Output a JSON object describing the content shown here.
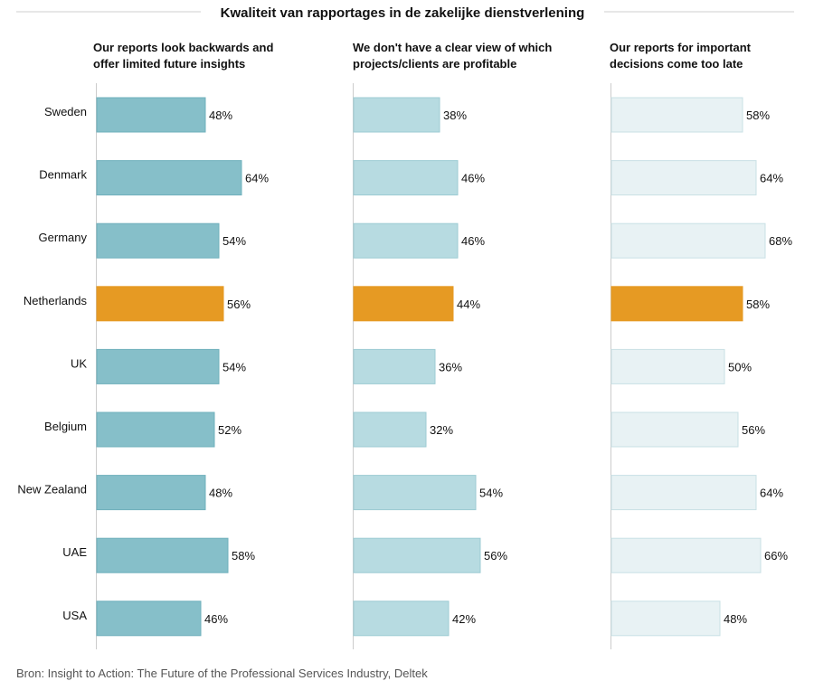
{
  "chart_data": {
    "type": "bar",
    "orientation": "horizontal",
    "title": "Kwaliteit van rapportages in de zakelijke dienstverlening",
    "source": "Bron: Insight to Action: The Future of the Professional Services Industry, Deltek",
    "categories": [
      "Sweden",
      "Denmark",
      "Germany",
      "Netherlands",
      "UK",
      "Belgium",
      "New Zealand",
      "UAE",
      "USA"
    ],
    "highlight": "Netherlands",
    "value_suffix": "%",
    "xlim": [
      0,
      100
    ],
    "panels": [
      {
        "title_lines": [
          "Our reports look backwards and",
          "offer limited future insights"
        ],
        "values": [
          48,
          64,
          54,
          56,
          54,
          52,
          48,
          58,
          46
        ],
        "color": "#86bfc9",
        "border": "#6fb0bc"
      },
      {
        "title_lines": [
          "We don't have a clear view of which",
          "projects/clients are profitable"
        ],
        "values": [
          38,
          46,
          46,
          44,
          36,
          32,
          54,
          56,
          42
        ],
        "color": "#b7dbe1",
        "border": "#9ccbd3"
      },
      {
        "title_lines": [
          "Our reports for important",
          "decisions come too late"
        ],
        "values": [
          58,
          64,
          68,
          58,
          50,
          56,
          64,
          66,
          48
        ],
        "color": "#e8f2f4",
        "border": "#c9e0e5"
      }
    ],
    "highlight_color": "#e69a23"
  }
}
